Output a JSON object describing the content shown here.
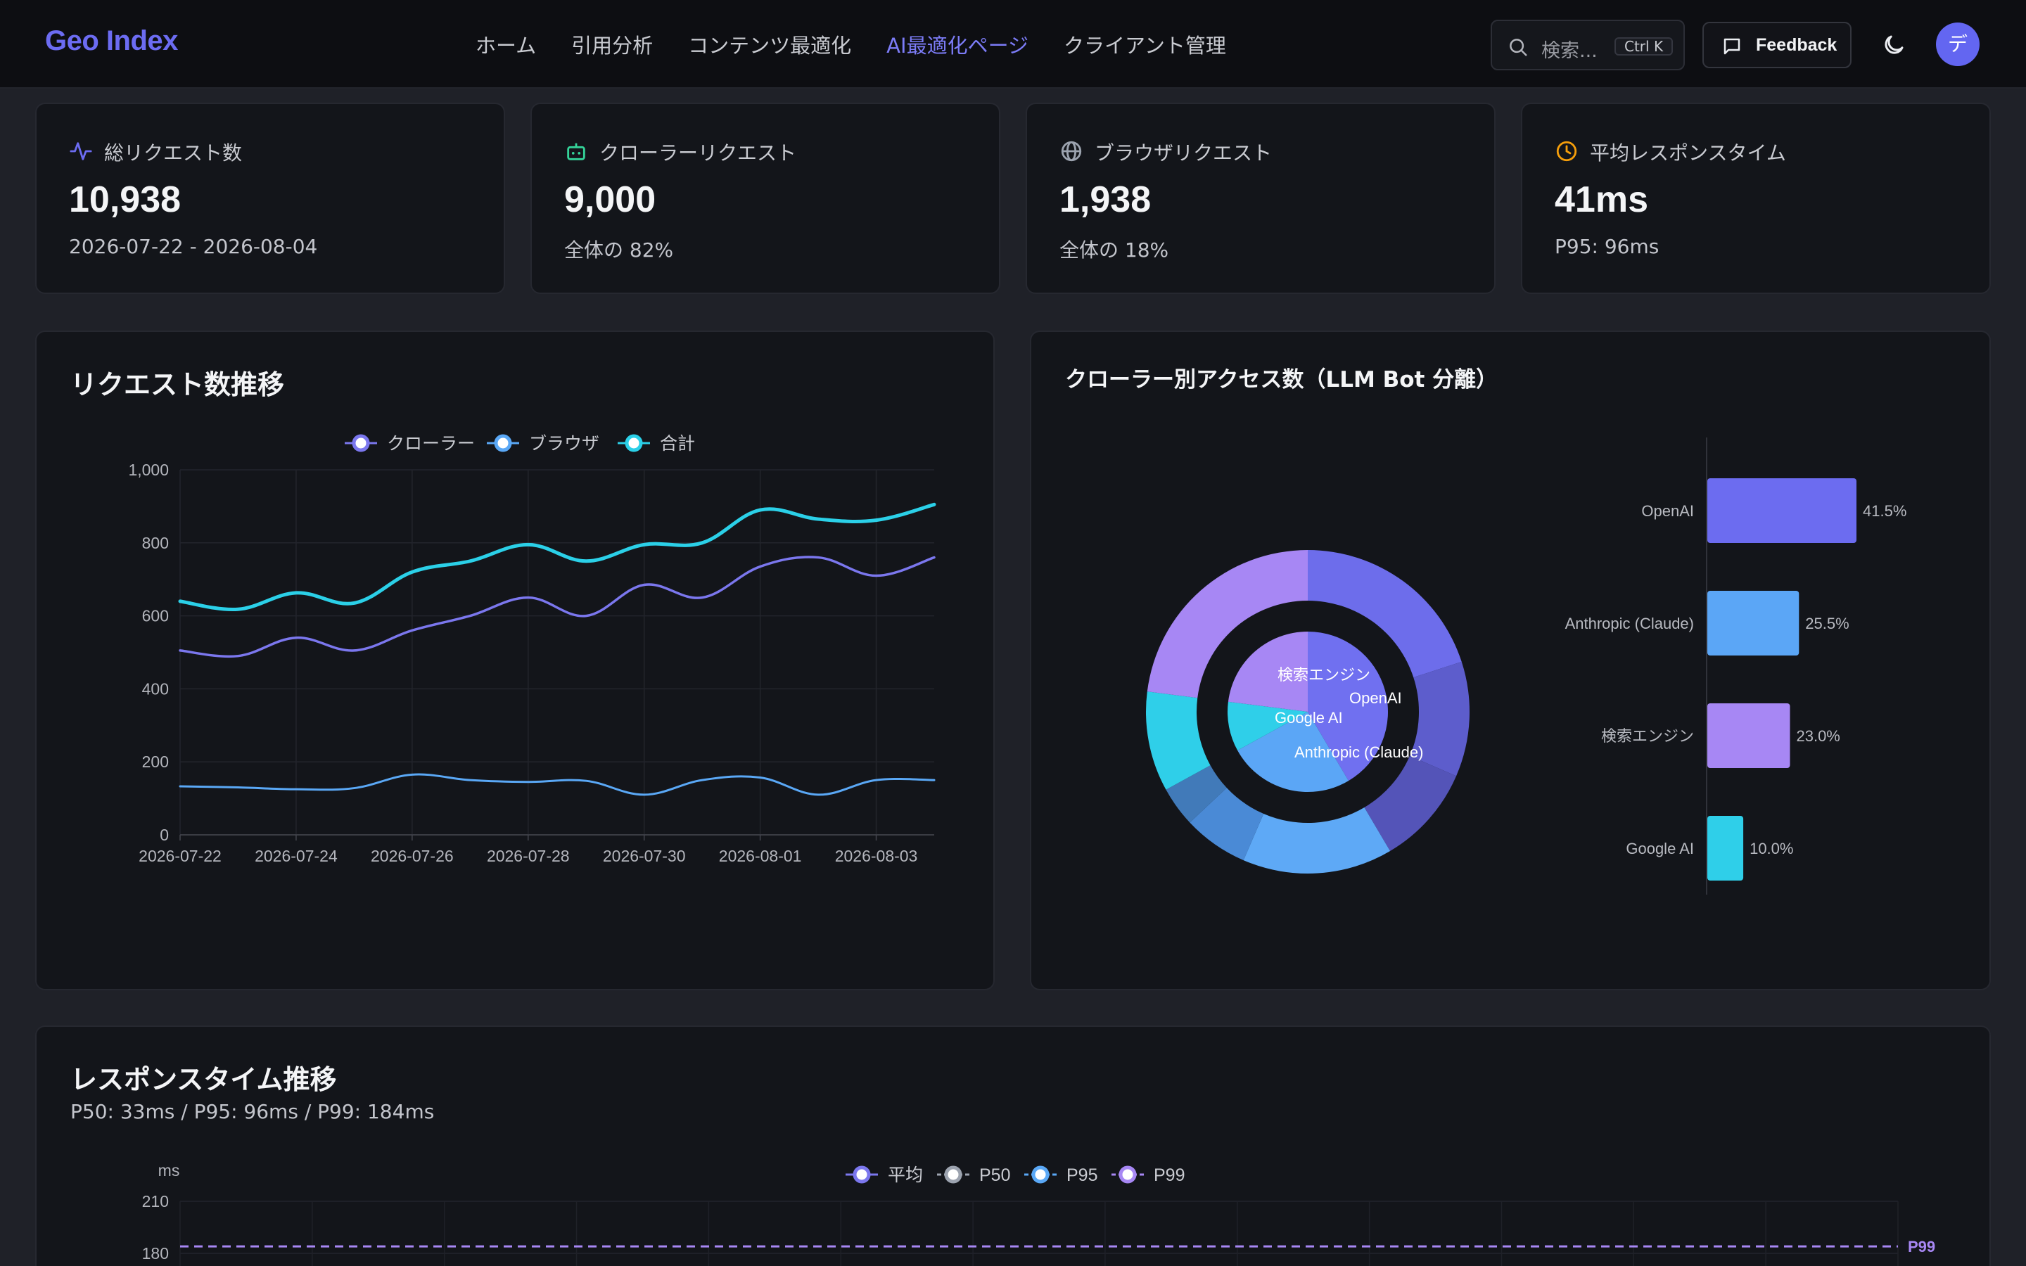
{
  "header": {
    "brand": "Geo Index",
    "nav": [
      {
        "label": "ホーム",
        "active": false
      },
      {
        "label": "引用分析",
        "active": false
      },
      {
        "label": "コンテンツ最適化",
        "active": false
      },
      {
        "label": "AI最適化ページ",
        "active": true
      },
      {
        "label": "クライアント管理",
        "active": false
      }
    ],
    "search_placeholder": "検索...",
    "search_shortcut": "Ctrl K",
    "feedback_label": "Feedback",
    "avatar_initial": "デ"
  },
  "stats": [
    {
      "label": "総リクエスト数",
      "value": "10,938",
      "sub": "2026-07-22 - 2026-08-04",
      "icon": "activity-icon",
      "color": "#6c6cf2"
    },
    {
      "label": "クローラーリクエスト",
      "value": "9,000",
      "sub": "全体の 82%",
      "icon": "bot-icon",
      "color": "#34d399"
    },
    {
      "label": "ブラウザリクエスト",
      "value": "1,938",
      "sub": "全体の 18%",
      "icon": "globe-icon",
      "color": "#9ca3af"
    },
    {
      "label": "平均レスポンスタイム",
      "value": "41ms",
      "sub": "P95: 96ms",
      "icon": "clock-icon",
      "color": "#f59e0b"
    }
  ],
  "requests_panel": {
    "title": "リクエスト数推移"
  },
  "crawler_panel": {
    "title": "クローラー別アクセス数（LLM Bot 分離）"
  },
  "response_panel": {
    "title": "レスポンスタイム推移",
    "subtitle": "P50: 33ms / P95: 96ms / P99: 184ms"
  },
  "chart_data": [
    {
      "type": "line",
      "x": [
        "2026-07-22",
        "2026-07-23",
        "2026-07-24",
        "2026-07-25",
        "2026-07-26",
        "2026-07-27",
        "2026-07-28",
        "2026-07-29",
        "2026-07-30",
        "2026-07-31",
        "2026-08-01",
        "2026-08-02",
        "2026-08-03",
        "2026-08-04"
      ],
      "x_tick_labels": [
        "2026-07-22",
        "2026-07-24",
        "2026-07-26",
        "2026-07-28",
        "2026-07-30",
        "2026-08-01",
        "2026-08-03"
      ],
      "ylim": [
        0,
        1000
      ],
      "y_ticks": [
        "0",
        "200",
        "400",
        "600",
        "800",
        "1,000"
      ],
      "legend": "top",
      "grid": true,
      "series": [
        {
          "name": "クローラー",
          "color": "#7b77ee",
          "values": [
            505,
            490,
            540,
            505,
            560,
            600,
            650,
            600,
            685,
            650,
            735,
            760,
            710,
            760
          ]
        },
        {
          "name": "ブラウザ",
          "color": "#5aa8f6",
          "values": [
            133,
            130,
            125,
            128,
            165,
            150,
            145,
            148,
            110,
            150,
            157,
            110,
            150,
            150
          ]
        },
        {
          "name": "合計",
          "color": "#2bd0e8",
          "values": [
            640,
            618,
            663,
            635,
            720,
            750,
            795,
            750,
            795,
            800,
            890,
            865,
            862,
            905
          ]
        }
      ]
    },
    {
      "type": "pie",
      "inner": [
        {
          "name": "OpenAI",
          "value": 41.5,
          "color": "#7070f0"
        },
        {
          "name": "Anthropic (Claude)",
          "value": 25.5,
          "color": "#5ba6f6"
        },
        {
          "name": "Google AI",
          "value": 10.0,
          "color": "#2fcfe9"
        },
        {
          "name": "検索エンジン",
          "value": 23.0,
          "color": "#a787f4"
        }
      ],
      "outer": [
        {
          "value": 20.0,
          "color": "#6d6deb"
        },
        {
          "value": 11.5,
          "color": "#5d5dcc"
        },
        {
          "value": 10.0,
          "color": "#5454b8"
        },
        {
          "value": 15.0,
          "color": "#5ea9f6"
        },
        {
          "value": 6.5,
          "color": "#4a8ad6"
        },
        {
          "value": 4.0,
          "color": "#417ab9"
        },
        {
          "value": 10.0,
          "color": "#2fcfe9"
        },
        {
          "value": 23.0,
          "color": "#a787f4"
        }
      ]
    },
    {
      "type": "bar",
      "orientation": "horizontal",
      "categories": [
        "OpenAI",
        "Anthropic (Claude)",
        "検索エンジン",
        "Google AI"
      ],
      "values": [
        41.5,
        25.5,
        23.0,
        10.0
      ],
      "value_labels": [
        "41.5%",
        "25.5%",
        "23.0%",
        "10.0%"
      ],
      "colors": [
        "#6c6cf0",
        "#5ba6f6",
        "#a787f4",
        "#2fcfe9"
      ]
    },
    {
      "type": "line",
      "ylabel": "ms",
      "y_ticks": [
        "180",
        "210"
      ],
      "legend": "top",
      "series": [
        {
          "name": "平均",
          "color": "#7b77ee"
        },
        {
          "name": "P50",
          "color": "#9ca3af"
        },
        {
          "name": "P95",
          "color": "#5aa8f6"
        },
        {
          "name": "P99",
          "color": "#a787f4",
          "value": 184
        }
      ],
      "marker_label": "P99"
    }
  ]
}
